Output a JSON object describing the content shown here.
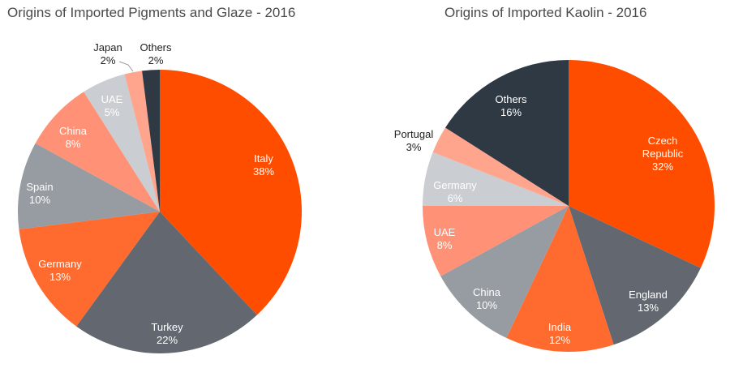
{
  "colors": {
    "orange": "#FF4D00",
    "dark_gray": "#636870",
    "light_orange": "#FF6A2E",
    "mid_gray": "#979BA2",
    "salmon": "#FF9276",
    "light_gray": "#CACDD1",
    "pale_salmon": "#FFA58E",
    "navy": "#2E3944"
  },
  "chart_data": [
    {
      "type": "pie",
      "title": "Origins of Imported Pigments and Glaze - 2016",
      "slices": [
        {
          "label": "Italy",
          "value": 38,
          "pct": "38%",
          "color": "#FF4D00",
          "text_color": "#ffffff"
        },
        {
          "label": "Turkey",
          "value": 22,
          "pct": "22%",
          "color": "#636870",
          "text_color": "#ffffff"
        },
        {
          "label": "Germany",
          "value": 13,
          "pct": "13%",
          "color": "#FF6A2E",
          "text_color": "#ffffff"
        },
        {
          "label": "Spain",
          "value": 10,
          "pct": "10%",
          "color": "#979BA2",
          "text_color": "#ffffff"
        },
        {
          "label": "China",
          "value": 8,
          "pct": "8%",
          "color": "#FF9276",
          "text_color": "#ffffff"
        },
        {
          "label": "UAE",
          "value": 5,
          "pct": "5%",
          "color": "#CACDD1",
          "text_color": "#ffffff"
        },
        {
          "label": "Japan",
          "value": 2,
          "pct": "2%",
          "color": "#FFA58E",
          "text_color": "#222222",
          "outside": true
        },
        {
          "label": "Others",
          "value": 2,
          "pct": "2%",
          "color": "#2E3944",
          "text_color": "#222222",
          "outside": true
        }
      ]
    },
    {
      "type": "pie",
      "title": "Origins of Imported Kaolin - 2016",
      "slices": [
        {
          "label": "Czech Republic",
          "value": 32,
          "pct": "32%",
          "color": "#FF4D00",
          "text_color": "#ffffff"
        },
        {
          "label": "England",
          "value": 13,
          "pct": "13%",
          "color": "#636870",
          "text_color": "#ffffff"
        },
        {
          "label": "India",
          "value": 12,
          "pct": "12%",
          "color": "#FF6A2E",
          "text_color": "#ffffff"
        },
        {
          "label": "China",
          "value": 10,
          "pct": "10%",
          "color": "#979BA2",
          "text_color": "#ffffff"
        },
        {
          "label": "UAE",
          "value": 8,
          "pct": "8%",
          "color": "#FF9276",
          "text_color": "#ffffff"
        },
        {
          "label": "Germany",
          "value": 6,
          "pct": "6%",
          "color": "#CACDD1",
          "text_color": "#ffffff"
        },
        {
          "label": "Portugal",
          "value": 3,
          "pct": "3%",
          "color": "#FFA58E",
          "text_color": "#222222",
          "outside": true
        },
        {
          "label": "Others",
          "value": 16,
          "pct": "16%",
          "color": "#2E3944",
          "text_color": "#ffffff"
        }
      ]
    }
  ]
}
